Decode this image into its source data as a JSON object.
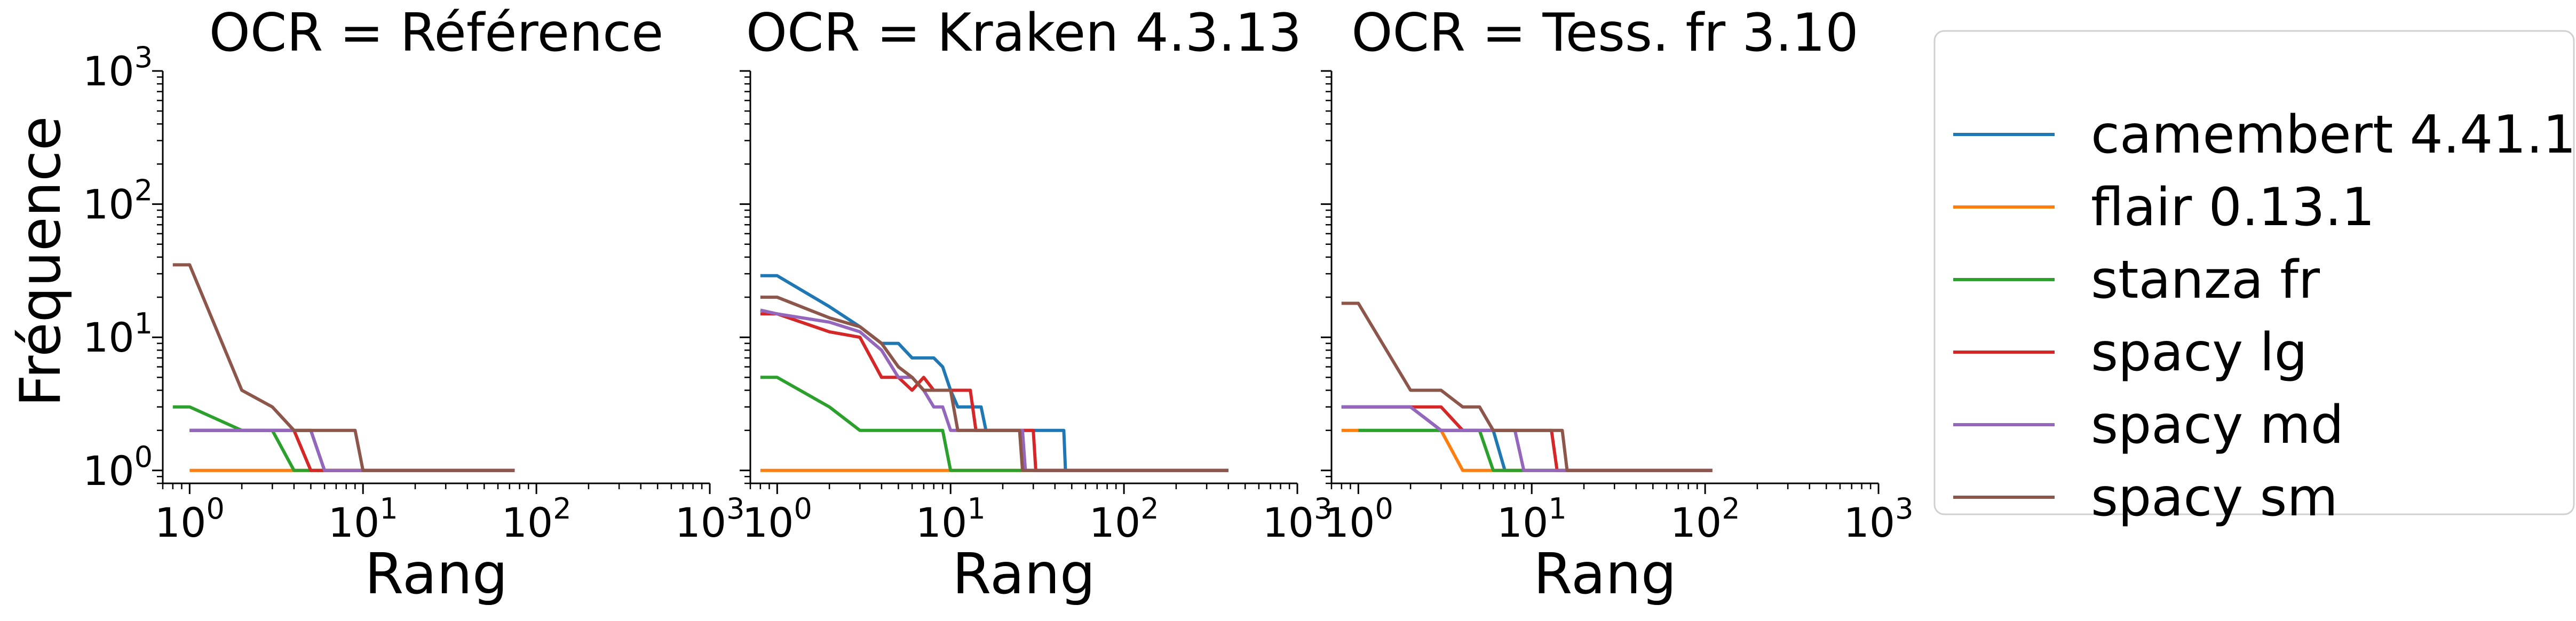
{
  "figure": {
    "ylabel": "Fréquence"
  },
  "chart_data": [
    {
      "type": "line",
      "title": "OCR = Référence",
      "xlabel": "Rang",
      "ylabel": "Fréquence",
      "xscale": "log",
      "yscale": "log",
      "xlim": [
        0.7,
        1000
      ],
      "ylim": [
        0.8,
        1000
      ],
      "x_ticks": [
        1,
        10,
        100,
        1000
      ],
      "y_ticks": [
        1,
        10,
        100,
        1000
      ],
      "series": [
        {
          "name": "camembert 4.41.1",
          "points": [
            [
              1,
              2
            ],
            [
              2,
              2
            ],
            [
              3,
              2
            ],
            [
              4,
              2
            ],
            [
              5,
              2
            ],
            [
              6,
              1
            ],
            [
              75,
              1
            ]
          ]
        },
        {
          "name": "flair 0.13.1",
          "points": [
            [
              1,
              1
            ],
            [
              75,
              1
            ]
          ]
        },
        {
          "name": "stanza fr",
          "points": [
            [
              0.8,
              3
            ],
            [
              1,
              3
            ],
            [
              2,
              2
            ],
            [
              3,
              2
            ],
            [
              4,
              1
            ],
            [
              75,
              1
            ]
          ]
        },
        {
          "name": "spacy lg",
          "points": [
            [
              1,
              2
            ],
            [
              2,
              2
            ],
            [
              3,
              2
            ],
            [
              4,
              2
            ],
            [
              5,
              1
            ],
            [
              75,
              1
            ]
          ]
        },
        {
          "name": "spacy md",
          "points": [
            [
              1,
              2
            ],
            [
              2,
              2
            ],
            [
              3,
              2
            ],
            [
              4,
              2
            ],
            [
              5,
              2
            ],
            [
              6,
              1
            ],
            [
              75,
              1
            ]
          ]
        },
        {
          "name": "spacy sm",
          "points": [
            [
              0.8,
              35
            ],
            [
              1,
              35
            ],
            [
              2,
              4
            ],
            [
              3,
              3
            ],
            [
              4,
              2
            ],
            [
              5,
              2
            ],
            [
              6,
              2
            ],
            [
              7,
              2
            ],
            [
              8,
              2
            ],
            [
              9,
              2
            ],
            [
              10,
              1
            ],
            [
              75,
              1
            ]
          ]
        }
      ]
    },
    {
      "type": "line",
      "title": "OCR = Kraken 4.3.13",
      "xlabel": "Rang",
      "xscale": "log",
      "yscale": "log",
      "xlim": [
        0.7,
        1000
      ],
      "ylim": [
        0.8,
        1000
      ],
      "x_ticks": [
        1,
        10,
        100,
        1000
      ],
      "series": [
        {
          "name": "camembert 4.41.1",
          "points": [
            [
              0.8,
              29
            ],
            [
              1,
              29
            ],
            [
              2,
              17
            ],
            [
              3,
              12
            ],
            [
              4,
              9
            ],
            [
              5,
              9
            ],
            [
              6,
              7
            ],
            [
              7,
              7
            ],
            [
              8,
              7
            ],
            [
              9,
              6
            ],
            [
              10,
              4
            ],
            [
              11,
              3
            ],
            [
              15,
              3
            ],
            [
              16,
              2
            ],
            [
              45,
              2
            ],
            [
              46,
              1
            ],
            [
              400,
              1
            ]
          ]
        },
        {
          "name": "flair 0.13.1",
          "points": [
            [
              0.8,
              1
            ],
            [
              400,
              1
            ]
          ]
        },
        {
          "name": "stanza fr",
          "points": [
            [
              0.8,
              5
            ],
            [
              1,
              5
            ],
            [
              2,
              3
            ],
            [
              3,
              2
            ],
            [
              9,
              2
            ],
            [
              10,
              1
            ],
            [
              400,
              1
            ]
          ]
        },
        {
          "name": "spacy lg",
          "points": [
            [
              0.8,
              15
            ],
            [
              1,
              15
            ],
            [
              2,
              11
            ],
            [
              3,
              10
            ],
            [
              4,
              5
            ],
            [
              5,
              5
            ],
            [
              6,
              4
            ],
            [
              7,
              5
            ],
            [
              8,
              4
            ],
            [
              13,
              4
            ],
            [
              14,
              2
            ],
            [
              30,
              2
            ],
            [
              31,
              1
            ],
            [
              400,
              1
            ]
          ]
        },
        {
          "name": "spacy md",
          "points": [
            [
              0.8,
              16
            ],
            [
              1,
              15
            ],
            [
              2,
              13
            ],
            [
              3,
              11
            ],
            [
              4,
              8
            ],
            [
              5,
              5
            ],
            [
              6,
              5
            ],
            [
              7,
              4
            ],
            [
              8,
              3
            ],
            [
              9,
              3
            ],
            [
              10,
              2
            ],
            [
              26,
              2
            ],
            [
              27,
              1
            ],
            [
              400,
              1
            ]
          ]
        },
        {
          "name": "spacy sm",
          "points": [
            [
              0.8,
              20
            ],
            [
              1,
              20
            ],
            [
              2,
              14
            ],
            [
              3,
              12
            ],
            [
              4,
              9
            ],
            [
              5,
              6
            ],
            [
              6,
              5
            ],
            [
              7,
              4
            ],
            [
              8,
              4
            ],
            [
              10,
              4
            ],
            [
              11,
              2
            ],
            [
              25,
              2
            ],
            [
              26,
              1
            ],
            [
              400,
              1
            ]
          ]
        }
      ]
    },
    {
      "type": "line",
      "title": "OCR = Tess. fr 3.10",
      "xlabel": "Rang",
      "xscale": "log",
      "yscale": "log",
      "xlim": [
        0.7,
        1000
      ],
      "ylim": [
        0.8,
        1000
      ],
      "x_ticks": [
        1,
        10,
        100,
        1000
      ],
      "series": [
        {
          "name": "camembert 4.41.1",
          "points": [
            [
              0.8,
              3
            ],
            [
              1,
              3
            ],
            [
              2,
              3
            ],
            [
              3,
              2
            ],
            [
              4,
              2
            ],
            [
              5,
              2
            ],
            [
              6,
              2
            ],
            [
              7,
              1
            ],
            [
              110,
              1
            ]
          ]
        },
        {
          "name": "flair 0.13.1",
          "points": [
            [
              0.8,
              2
            ],
            [
              1,
              2
            ],
            [
              2,
              2
            ],
            [
              3,
              2
            ],
            [
              4,
              1
            ],
            [
              110,
              1
            ]
          ]
        },
        {
          "name": "stanza fr",
          "points": [
            [
              1,
              2
            ],
            [
              2,
              2
            ],
            [
              3,
              2
            ],
            [
              4,
              2
            ],
            [
              5,
              2
            ],
            [
              6,
              1
            ],
            [
              110,
              1
            ]
          ]
        },
        {
          "name": "spacy lg",
          "points": [
            [
              0.8,
              3
            ],
            [
              1,
              3
            ],
            [
              2,
              3
            ],
            [
              3,
              3
            ],
            [
              4,
              2
            ],
            [
              13,
              2
            ],
            [
              14,
              1
            ],
            [
              110,
              1
            ]
          ]
        },
        {
          "name": "spacy md",
          "points": [
            [
              0.8,
              3
            ],
            [
              1,
              3
            ],
            [
              2,
              3
            ],
            [
              3,
              2
            ],
            [
              8,
              2
            ],
            [
              9,
              1
            ],
            [
              110,
              1
            ]
          ]
        },
        {
          "name": "spacy sm",
          "points": [
            [
              0.8,
              18
            ],
            [
              1,
              18
            ],
            [
              2,
              4
            ],
            [
              3,
              4
            ],
            [
              4,
              3
            ],
            [
              5,
              3
            ],
            [
              6,
              2
            ],
            [
              15,
              2
            ],
            [
              16,
              1
            ],
            [
              110,
              1
            ]
          ]
        }
      ]
    }
  ],
  "legend": {
    "placement": "right",
    "entries": [
      {
        "name": "camembert 4.41.1",
        "color": "#1f77b4"
      },
      {
        "name": "flair 0.13.1",
        "color": "#ff7f0e"
      },
      {
        "name": "stanza fr",
        "color": "#2ca02c"
      },
      {
        "name": "spacy lg",
        "color": "#d62728"
      },
      {
        "name": "spacy md",
        "color": "#9467bd"
      },
      {
        "name": "spacy sm",
        "color": "#8c564b"
      }
    ]
  }
}
